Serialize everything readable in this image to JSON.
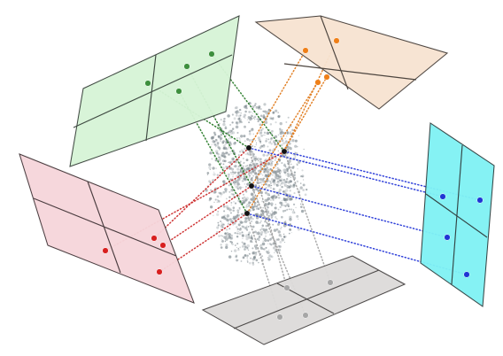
{
  "figure": {
    "background_color": "#ffffff",
    "central_object": {
      "type": "sparse point cloud",
      "color": "#7f8a90"
    },
    "projection_line_style": "dotted",
    "planes": [
      {
        "id": "green",
        "position": "top-left",
        "fill": "#d7f4d7",
        "stroke": "#3f4a42",
        "ray_color": "#2b7d2b",
        "point_color": "#3d8f3d",
        "point_count": 4
      },
      {
        "id": "peach",
        "position": "top-right",
        "fill": "#f8e4d2",
        "stroke": "#4d453f",
        "ray_color": "#e07b1e",
        "point_color": "#ef7f18",
        "point_count": 4
      },
      {
        "id": "pink",
        "position": "left",
        "fill": "#f7d6db",
        "stroke": "#4b3d40",
        "ray_color": "#cc2d2d",
        "point_color": "#d81f1f",
        "point_count": 4
      },
      {
        "id": "cyan",
        "position": "right",
        "fill": "#7ff2f4",
        "stroke": "#334444",
        "ray_color": "#2638d8",
        "point_color": "#1f35d4",
        "point_count": 4
      },
      {
        "id": "gray",
        "position": "bottom",
        "fill": "#dddbda",
        "stroke": "#4d4a49",
        "ray_color": "#9a9a9a",
        "point_color": "#a6a6a6",
        "point_count": 4
      }
    ]
  }
}
